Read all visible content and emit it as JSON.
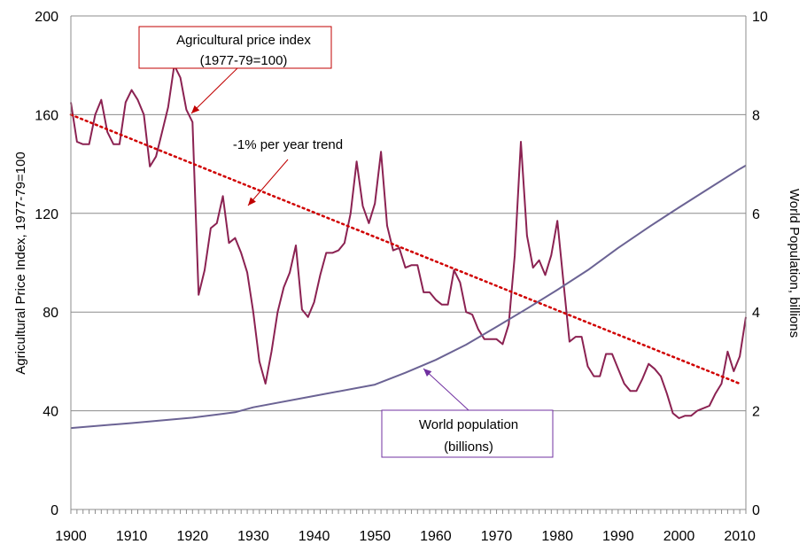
{
  "chart_data": {
    "type": "line",
    "x_ticks": [
      1900,
      1910,
      1920,
      1930,
      1940,
      1950,
      1960,
      1970,
      1980,
      1990,
      2000,
      2010
    ],
    "xlim": [
      1900,
      2011
    ],
    "y_left": {
      "label": "Agricultural Price Index, 1977-79=100",
      "ticks": [
        0,
        40,
        80,
        120,
        160,
        200
      ],
      "lim": [
        0,
        200
      ]
    },
    "y_right": {
      "label": "World Population, billions",
      "ticks": [
        0,
        2,
        4,
        6,
        8,
        10
      ],
      "lim": [
        0,
        10
      ]
    },
    "grid": "horizontal",
    "series": [
      {
        "name": "Agricultural price index (1977-79=100)",
        "axis": "left",
        "color": "#8B2252",
        "x": [
          1900,
          1901,
          1902,
          1903,
          1904,
          1905,
          1906,
          1907,
          1908,
          1909,
          1910,
          1911,
          1912,
          1913,
          1914,
          1915,
          1916,
          1917,
          1918,
          1919,
          1920,
          1921,
          1922,
          1923,
          1924,
          1925,
          1926,
          1927,
          1928,
          1929,
          1930,
          1931,
          1932,
          1933,
          1934,
          1935,
          1936,
          1937,
          1938,
          1939,
          1940,
          1941,
          1942,
          1943,
          1944,
          1945,
          1946,
          1947,
          1948,
          1949,
          1950,
          1951,
          1952,
          1953,
          1954,
          1955,
          1956,
          1957,
          1958,
          1959,
          1960,
          1961,
          1962,
          1963,
          1964,
          1965,
          1966,
          1967,
          1968,
          1969,
          1970,
          1971,
          1972,
          1973,
          1974,
          1975,
          1976,
          1977,
          1978,
          1979,
          1980,
          1981,
          1982,
          1983,
          1984,
          1985,
          1986,
          1987,
          1988,
          1989,
          1990,
          1991,
          1992,
          1993,
          1994,
          1995,
          1996,
          1997,
          1998,
          1999,
          2000,
          2001,
          2002,
          2003,
          2004,
          2005,
          2006,
          2007,
          2008,
          2009,
          2010,
          2011
        ],
        "y": [
          165,
          149,
          148,
          148,
          160,
          166,
          153,
          148,
          148,
          165,
          170,
          166,
          160,
          139,
          143,
          153,
          163,
          180,
          175,
          162,
          157,
          87,
          97,
          114,
          116,
          127,
          108,
          110,
          104,
          96,
          80,
          60,
          51,
          64,
          80,
          90,
          96,
          107,
          81,
          78,
          84,
          95,
          104,
          104,
          105,
          108,
          120,
          141,
          123,
          116,
          124,
          145,
          115,
          105,
          106,
          98,
          99,
          99,
          88,
          88,
          85,
          83,
          83,
          97,
          92,
          80,
          79,
          73,
          69,
          69,
          69,
          67,
          75,
          103,
          149,
          111,
          98,
          101,
          95,
          103,
          117,
          92,
          68,
          70,
          70,
          58,
          54,
          54,
          63,
          63,
          57,
          51,
          48,
          48,
          53,
          59,
          57,
          54,
          47,
          39,
          37,
          38,
          38,
          40,
          41,
          42,
          47,
          51,
          64,
          56,
          62,
          78
        ]
      },
      {
        "name": "-1% per year trend",
        "axis": "left",
        "color": "#D00000",
        "style": "dotted",
        "x": [
          1900,
          2010
        ],
        "y": [
          160,
          51
        ]
      },
      {
        "name": "World population (billions)",
        "axis": "right",
        "color": "#6B6394",
        "x": [
          1900,
          1910,
          1920,
          1927,
          1930,
          1940,
          1950,
          1955,
          1960,
          1965,
          1970,
          1975,
          1980,
          1985,
          1990,
          1995,
          2000,
          2005,
          2010,
          2011
        ],
        "y": [
          1.65,
          1.75,
          1.86,
          1.97,
          2.07,
          2.3,
          2.53,
          2.77,
          3.03,
          3.34,
          3.7,
          4.07,
          4.45,
          4.85,
          5.3,
          5.72,
          6.12,
          6.51,
          6.9,
          6.97
        ]
      }
    ],
    "annotations": [
      {
        "id": "price",
        "lines": [
          "Agricultural price index",
          "(1977-79=100)"
        ],
        "color": "#C00000"
      },
      {
        "id": "trend",
        "lines": [
          "-1% per year trend"
        ],
        "color": "#C00000"
      },
      {
        "id": "population",
        "lines": [
          "World population",
          "(billions)"
        ],
        "color": "#7030A0"
      }
    ]
  }
}
